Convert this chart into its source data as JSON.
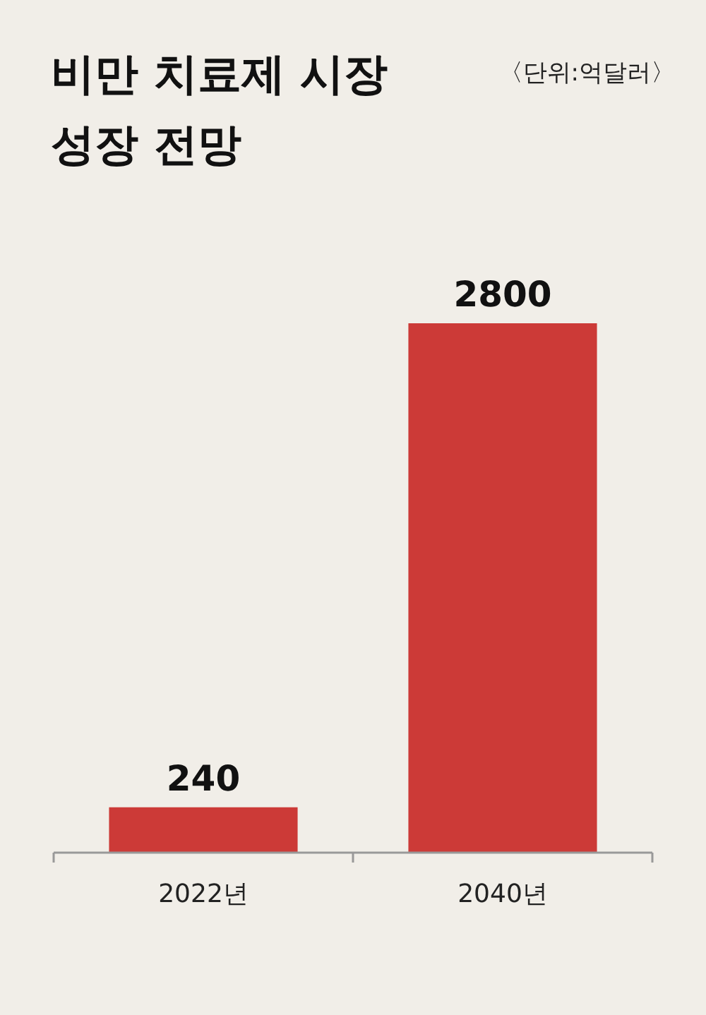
{
  "chart_data": {
    "type": "bar",
    "title": "비만 치료제 시장 성장 전망",
    "subtitle": "〈단위:억달러〉",
    "categories": [
      "2022년",
      "2040년"
    ],
    "values": [
      240,
      2800
    ],
    "color": "#cc3a37",
    "data_labels": true
  }
}
